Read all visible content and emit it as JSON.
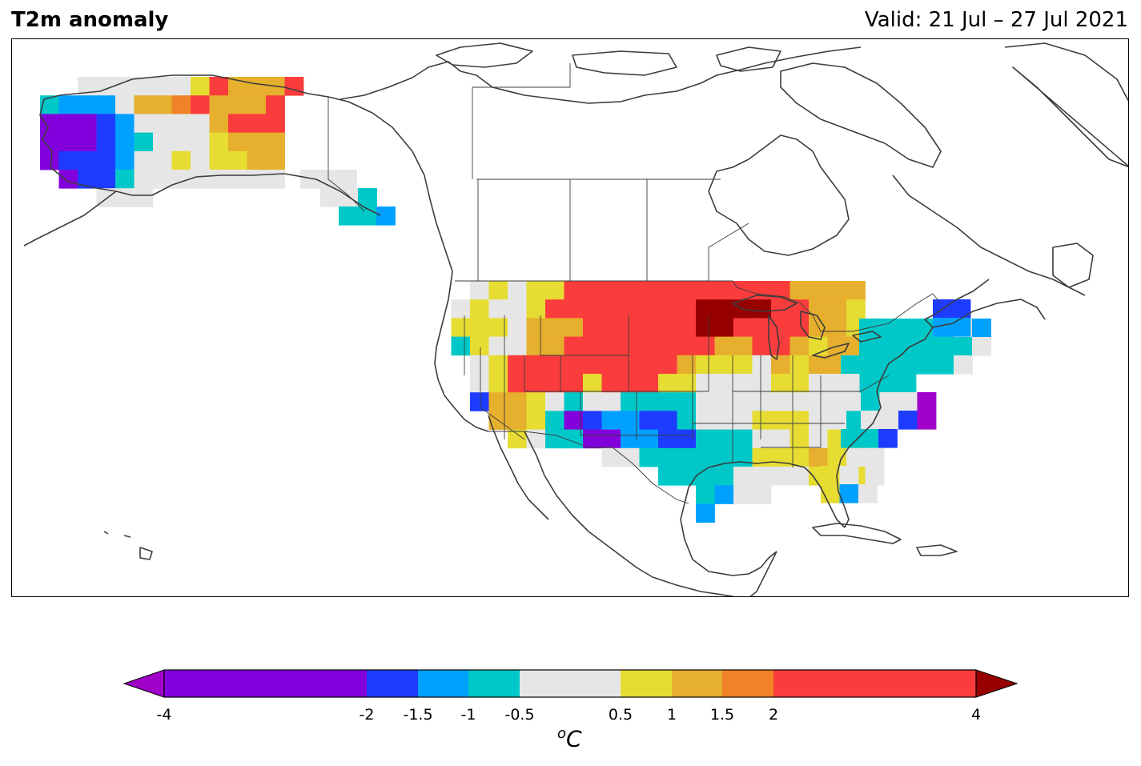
{
  "header": {
    "title": "T2m anomaly",
    "valid": "Valid: 21 Jul – 27 Jul 2021"
  },
  "colorbar": {
    "unit_base": "C",
    "unit_sup": "o",
    "bins": [
      {
        "from": -4,
        "to": -2,
        "color": "#8200dc"
      },
      {
        "from": -2,
        "to": -1.5,
        "color": "#1e3cff"
      },
      {
        "from": -1.5,
        "to": -1,
        "color": "#00a0ff"
      },
      {
        "from": -1,
        "to": -0.5,
        "color": "#00c8c8"
      },
      {
        "from": -0.5,
        "to": 0.5,
        "color": "#e6e6e6"
      },
      {
        "from": 0.5,
        "to": 1,
        "color": "#e6dc32"
      },
      {
        "from": 1,
        "to": 1.5,
        "color": "#e6af2d"
      },
      {
        "from": 1.5,
        "to": 2,
        "color": "#f08228"
      },
      {
        "from": 2,
        "to": 4,
        "color": "#fa3c3c"
      }
    ],
    "under_color": "#a000c8",
    "over_color": "#960000",
    "ticks": [
      "-4",
      "-2",
      "-1.5",
      "-1",
      "-0.5",
      "0.5",
      "1",
      "1.5",
      "2",
      "4"
    ],
    "tick_values": [
      -4,
      -2,
      -1.5,
      -1,
      -0.5,
      0.5,
      1,
      1.5,
      2,
      4
    ]
  },
  "map": {
    "region": "North America",
    "coastline_color": "#3c3c3c",
    "anomaly_regions": [
      {
        "area": "Alaska west coast",
        "anomaly": "below -2"
      },
      {
        "area": "Alaska interior east",
        "anomaly": "2 to 4"
      },
      {
        "area": "US Northern Plains / South Dakota",
        "anomaly": "above 4"
      },
      {
        "area": "US Upper Midwest",
        "anomaly": "2 to 4"
      },
      {
        "area": "US Southwest / New Mexico",
        "anomaly": "below -2"
      },
      {
        "area": "US Northeast / New England",
        "anomaly": "-1 to -0.5"
      },
      {
        "area": "US Southeast",
        "anomaly": "0.5 to 1"
      },
      {
        "area": "Texas",
        "anomaly": "-1 to -0.5"
      }
    ]
  }
}
